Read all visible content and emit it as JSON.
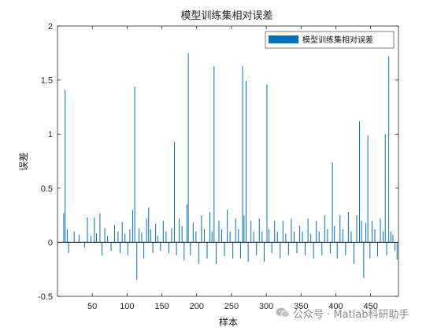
{
  "chart_data": {
    "type": "bar",
    "title": "模型训练集相对误差",
    "xlabel": "样本",
    "ylabel": "误差",
    "xlim": [
      0,
      490
    ],
    "ylim": [
      -0.5,
      2
    ],
    "xticks": [
      50,
      100,
      150,
      200,
      250,
      300,
      350,
      400,
      450
    ],
    "yticks": [
      -0.5,
      0,
      0.5,
      1,
      1.5,
      2
    ],
    "ytick_labels": [
      "-0.5",
      "0",
      "0.5",
      "1",
      "1.5",
      "2"
    ],
    "grid": false,
    "legend_position": "top-right",
    "series": [
      {
        "name": "模型训练集相对误差",
        "color": "#0072BD",
        "points": [
          {
            "x": 9,
            "y": 0.27
          },
          {
            "x": 11,
            "y": 1.41
          },
          {
            "x": 14,
            "y": 0.12
          },
          {
            "x": 16,
            "y": -0.1
          },
          {
            "x": 24,
            "y": 0.1
          },
          {
            "x": 31,
            "y": 0.07
          },
          {
            "x": 39,
            "y": -0.05
          },
          {
            "x": 43,
            "y": 0.23
          },
          {
            "x": 48,
            "y": 0.06
          },
          {
            "x": 53,
            "y": 0.23
          },
          {
            "x": 56,
            "y": 0.08
          },
          {
            "x": 61,
            "y": 0.27
          },
          {
            "x": 64,
            "y": -0.12
          },
          {
            "x": 68,
            "y": 0.13
          },
          {
            "x": 72,
            "y": 0.06
          },
          {
            "x": 77,
            "y": -0.08
          },
          {
            "x": 82,
            "y": 0.16
          },
          {
            "x": 87,
            "y": 0.1
          },
          {
            "x": 90,
            "y": -0.1
          },
          {
            "x": 93,
            "y": 0.19
          },
          {
            "x": 97,
            "y": 0.08
          },
          {
            "x": 101,
            "y": -0.12
          },
          {
            "x": 104,
            "y": 0.12
          },
          {
            "x": 108,
            "y": 0.3
          },
          {
            "x": 111,
            "y": 1.44
          },
          {
            "x": 114,
            "y": -0.35
          },
          {
            "x": 117,
            "y": 0.13
          },
          {
            "x": 121,
            "y": 0.09
          },
          {
            "x": 124,
            "y": -0.15
          },
          {
            "x": 128,
            "y": 0.22
          },
          {
            "x": 131,
            "y": 0.32
          },
          {
            "x": 134,
            "y": 0.12
          },
          {
            "x": 137,
            "y": -0.1
          },
          {
            "x": 141,
            "y": 0.17
          },
          {
            "x": 144,
            "y": 0.06
          },
          {
            "x": 148,
            "y": -0.08
          },
          {
            "x": 152,
            "y": 0.2
          },
          {
            "x": 156,
            "y": 0.1
          },
          {
            "x": 160,
            "y": -0.1
          },
          {
            "x": 164,
            "y": 0.13
          },
          {
            "x": 168,
            "y": 0.93
          },
          {
            "x": 171,
            "y": -0.12
          },
          {
            "x": 175,
            "y": 0.22
          },
          {
            "x": 179,
            "y": 0.15
          },
          {
            "x": 182,
            "y": -0.17
          },
          {
            "x": 186,
            "y": 0.35
          },
          {
            "x": 188,
            "y": 1.75
          },
          {
            "x": 191,
            "y": -0.12
          },
          {
            "x": 195,
            "y": 0.18
          },
          {
            "x": 199,
            "y": 0.1
          },
          {
            "x": 203,
            "y": -0.2
          },
          {
            "x": 207,
            "y": 0.25
          },
          {
            "x": 211,
            "y": 0.12
          },
          {
            "x": 215,
            "y": -0.15
          },
          {
            "x": 219,
            "y": 0.28
          },
          {
            "x": 222,
            "y": 0.1
          },
          {
            "x": 225,
            "y": 1.63
          },
          {
            "x": 228,
            "y": -0.2
          },
          {
            "x": 232,
            "y": 0.2
          },
          {
            "x": 236,
            "y": 0.12
          },
          {
            "x": 240,
            "y": -0.13
          },
          {
            "x": 244,
            "y": 0.3
          },
          {
            "x": 248,
            "y": 0.1
          },
          {
            "x": 252,
            "y": -0.15
          },
          {
            "x": 256,
            "y": 0.22
          },
          {
            "x": 260,
            "y": 0.12
          },
          {
            "x": 263,
            "y": -0.15
          },
          {
            "x": 266,
            "y": 1.63
          },
          {
            "x": 268,
            "y": 0.25
          },
          {
            "x": 271,
            "y": 1.49
          },
          {
            "x": 274,
            "y": -0.18
          },
          {
            "x": 278,
            "y": 0.2
          },
          {
            "x": 282,
            "y": 0.1
          },
          {
            "x": 286,
            "y": -0.12
          },
          {
            "x": 290,
            "y": 0.22
          },
          {
            "x": 294,
            "y": 0.1
          },
          {
            "x": 297,
            "y": -0.18
          },
          {
            "x": 301,
            "y": 1.46
          },
          {
            "x": 304,
            "y": 0.12
          },
          {
            "x": 308,
            "y": -0.1
          },
          {
            "x": 312,
            "y": 0.2
          },
          {
            "x": 316,
            "y": 0.1
          },
          {
            "x": 320,
            "y": -0.15
          },
          {
            "x": 324,
            "y": 0.2
          },
          {
            "x": 328,
            "y": 0.08
          },
          {
            "x": 332,
            "y": -0.12
          },
          {
            "x": 336,
            "y": 0.22
          },
          {
            "x": 340,
            "y": 0.1
          },
          {
            "x": 344,
            "y": -0.1
          },
          {
            "x": 348,
            "y": 0.15
          },
          {
            "x": 352,
            "y": 0.1
          },
          {
            "x": 356,
            "y": -0.12
          },
          {
            "x": 360,
            "y": 0.22
          },
          {
            "x": 364,
            "y": 0.08
          },
          {
            "x": 368,
            "y": -0.15
          },
          {
            "x": 372,
            "y": 0.2
          },
          {
            "x": 376,
            "y": 0.1
          },
          {
            "x": 380,
            "y": -0.12
          },
          {
            "x": 384,
            "y": 0.25
          },
          {
            "x": 388,
            "y": 0.12
          },
          {
            "x": 392,
            "y": -0.1
          },
          {
            "x": 395,
            "y": 0.74
          },
          {
            "x": 398,
            "y": 0.15
          },
          {
            "x": 402,
            "y": -0.15
          },
          {
            "x": 406,
            "y": 0.25
          },
          {
            "x": 410,
            "y": 0.12
          },
          {
            "x": 414,
            "y": -0.12
          },
          {
            "x": 418,
            "y": 0.28
          },
          {
            "x": 422,
            "y": 0.1
          },
          {
            "x": 426,
            "y": -0.2
          },
          {
            "x": 430,
            "y": 0.25
          },
          {
            "x": 434,
            "y": 1.12
          },
          {
            "x": 437,
            "y": 0.2
          },
          {
            "x": 440,
            "y": -0.33
          },
          {
            "x": 443,
            "y": 0.18
          },
          {
            "x": 446,
            "y": 0.99
          },
          {
            "x": 449,
            "y": -0.15
          },
          {
            "x": 452,
            "y": 0.2
          },
          {
            "x": 456,
            "y": 0.12
          },
          {
            "x": 460,
            "y": -0.13
          },
          {
            "x": 464,
            "y": 0.22
          },
          {
            "x": 468,
            "y": 0.1
          },
          {
            "x": 471,
            "y": 1.0
          },
          {
            "x": 473,
            "y": -0.12
          },
          {
            "x": 476,
            "y": 1.72
          },
          {
            "x": 479,
            "y": 0.1
          },
          {
            "x": 482,
            "y": 0.07
          },
          {
            "x": 485,
            "y": -0.08
          },
          {
            "x": 488,
            "y": -0.16
          }
        ]
      }
    ]
  },
  "watermark": {
    "text": "公众号 · Matlab科研助手"
  }
}
